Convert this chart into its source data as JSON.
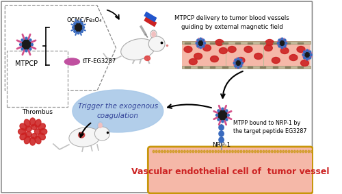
{
  "bg_color": "#ffffff",
  "mtpcp_label": "MTPCP",
  "ocmc_label": "OCMC/Fe₃O₄",
  "ttf_label": "tTF-EG3287",
  "delivery_text": "MTPCP delivery to tumor blood vessels\nguiding by external magnetic field",
  "trigger_text": "Trigger the exogenous\ncoagulation",
  "mtpp_text": "MTPP bound to NRP-1 by\nthe target peptide EG3287",
  "thrombus_label": "Thrombus",
  "nrp1_label": "NRP-1",
  "vessel_label": "Vascular endothelial cell of  tumor vessel",
  "pink_color": "#d4518a",
  "blue_color": "#3a6bbf",
  "dark_color": "#1a1a1a",
  "red_color": "#cc2222",
  "vessel_bg": "#f5b8a8",
  "vessel_border": "#c8960a",
  "blood_vessel_bg": "#f5b8a8",
  "ellipse_bg": "#a8c8e8",
  "outer_border": "#888888",
  "dashed_border": "#999999",
  "arrow_color": "#111111",
  "mouse_color": "#eeeeee",
  "mouse_border": "#999999"
}
